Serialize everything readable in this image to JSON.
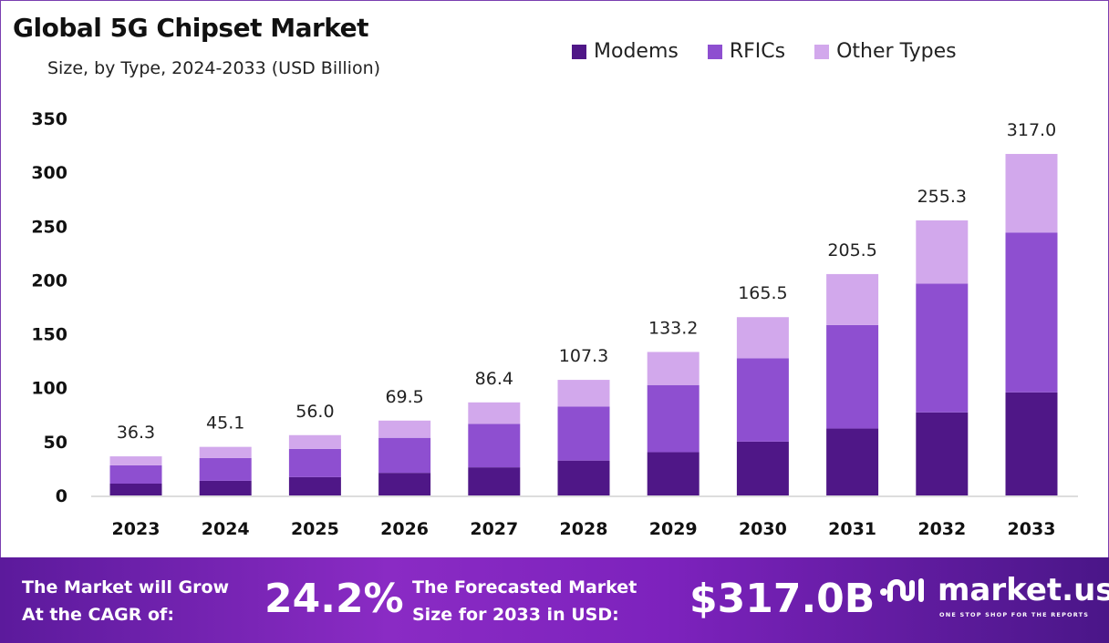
{
  "chart_data": {
    "type": "bar",
    "stacked": true,
    "title": "Global 5G Chipset Market",
    "subtitle": "Size, by Type, 2024-2033 (USD Billion)",
    "categories": [
      "2023",
      "2024",
      "2025",
      "2026",
      "2027",
      "2028",
      "2029",
      "2030",
      "2031",
      "2032",
      "2033"
    ],
    "series": [
      {
        "name": "Modems",
        "color": "#4f1787",
        "values": [
          11.0,
          13.6,
          17.0,
          21.0,
          26.1,
          32.4,
          40.2,
          50.0,
          62.1,
          77.1,
          95.7
        ]
      },
      {
        "name": "RFICs",
        "color": "#8e4fd0",
        "values": [
          17.0,
          21.1,
          26.2,
          32.5,
          40.4,
          50.2,
          62.3,
          77.4,
          96.1,
          119.5,
          148.4
        ]
      },
      {
        "name": "Other Types",
        "color": "#d2a8ec",
        "values": [
          8.3,
          10.4,
          12.8,
          16.0,
          19.9,
          24.7,
          30.7,
          38.1,
          47.3,
          58.7,
          72.9
        ]
      }
    ],
    "totals": [
      "36.3",
      "45.1",
      "56.0",
      "69.5",
      "86.4",
      "107.3",
      "133.2",
      "165.5",
      "205.5",
      "255.3",
      "317.0"
    ],
    "ylim": [
      0,
      350
    ],
    "yticks": [
      "0",
      "50",
      "100",
      "150",
      "200",
      "250",
      "300",
      "350"
    ],
    "grid": false,
    "legend": "top-right"
  },
  "footer": {
    "cagr_label_1": "The Market will Grow",
    "cagr_label_2": "At the CAGR of:",
    "cagr_value": "24.2%",
    "forecast_label_1": "The Forecasted Market",
    "forecast_label_2": "Size for 2033 in USD:",
    "forecast_value": "$317.0B",
    "logo_name": "market.us",
    "logo_tagline": "ONE STOP SHOP FOR THE REPORTS"
  }
}
